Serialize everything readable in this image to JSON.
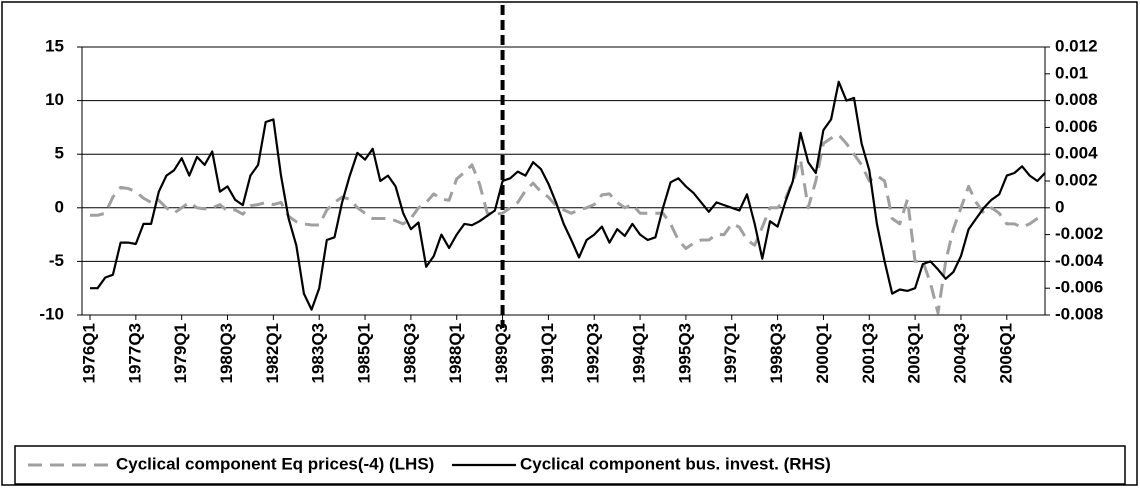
{
  "chart_data": {
    "type": "line",
    "categories": [
      "1976Q1",
      null,
      null,
      null,
      null,
      null,
      "1977Q3",
      null,
      null,
      null,
      null,
      null,
      "1979Q1",
      null,
      null,
      null,
      null,
      null,
      "1980Q3",
      null,
      null,
      null,
      null,
      null,
      "1982Q1",
      null,
      null,
      null,
      null,
      null,
      "1983Q3",
      null,
      null,
      null,
      null,
      null,
      "1985Q1",
      null,
      null,
      null,
      null,
      null,
      "1986Q3",
      null,
      null,
      null,
      null,
      null,
      "1988Q1",
      null,
      null,
      null,
      null,
      null,
      "1989Q3",
      null,
      null,
      null,
      null,
      null,
      "1991Q1",
      null,
      null,
      null,
      null,
      null,
      "1992Q3",
      null,
      null,
      null,
      null,
      null,
      "1994Q1",
      null,
      null,
      null,
      null,
      null,
      "1995Q3",
      null,
      null,
      null,
      null,
      null,
      "1997Q1",
      null,
      null,
      null,
      null,
      null,
      "1998Q3",
      null,
      null,
      null,
      null,
      null,
      "2000Q1",
      null,
      null,
      null,
      null,
      null,
      "2001Q3",
      null,
      null,
      null,
      null,
      null,
      "2003Q1",
      null,
      null,
      null,
      null,
      null,
      "2004Q3",
      null,
      null,
      null,
      null,
      null,
      "2006Q1",
      null,
      null,
      null,
      null,
      null
    ],
    "series": [
      {
        "name": "Cyclical component Eq prices(-4) (LHS)",
        "color": "#a0a0a0",
        "dash": true,
        "axis": "y",
        "values": [
          -0.7,
          -0.7,
          -0.5,
          1,
          1.9,
          1.8,
          1.5,
          0.9,
          0.5,
          0.7,
          0,
          -0.5,
          0,
          0.5,
          0,
          -0.1,
          0,
          0.3,
          -0.3,
          -0.2,
          -0.6,
          0.2,
          0.3,
          0.5,
          0.3,
          0.5,
          -0.8,
          -1.3,
          -1.5,
          -1.6,
          -1.6,
          -0.2,
          0.5,
          1,
          0.8,
          0,
          -0.5,
          -1,
          -1,
          -1,
          -1.2,
          -1.5,
          -1,
          0,
          0.5,
          1.3,
          0.8,
          0.7,
          2.7,
          3.3,
          4,
          2.2,
          -0.5,
          -0.6,
          -0.5,
          0,
          0.5,
          1.6,
          2.3,
          1.5,
          1,
          0.2,
          -0.2,
          -0.5,
          -0.2,
          0,
          0.3,
          1.2,
          1.3,
          0.5,
          0,
          0.3,
          -0.5,
          -0.5,
          -0.5,
          -0.5,
          -1.5,
          -3,
          -3.8,
          -3.3,
          -3,
          -3,
          -2.5,
          -2.5,
          -1.5,
          -1.8,
          -3,
          -3.5,
          -1.8,
          0,
          0,
          0.8,
          2.5,
          4.5,
          0,
          2.5,
          6,
          6.5,
          6.8,
          6,
          5,
          4,
          2.5,
          3,
          2.5,
          -1,
          -1.5,
          0.8,
          -5,
          -5,
          -7,
          -9.8,
          -5,
          -2,
          0,
          2,
          0.5,
          -0.5,
          0,
          -0.5,
          -1.5,
          -1.5,
          -1.8,
          -1.5,
          -1,
          -0.7
        ]
      },
      {
        "name": "Cyclical component bus. invest. (RHS)",
        "color": "#000000",
        "dash": false,
        "axis": "y2",
        "values": [
          -0.006,
          -0.006,
          -0.0052,
          -0.005,
          -0.0026,
          -0.0026,
          -0.0027,
          -0.0012,
          -0.0012,
          0.0012,
          0.0024,
          0.0028,
          0.0037,
          0.0024,
          0.0038,
          0.0032,
          0.0042,
          0.0012,
          0.0016,
          0.0006,
          0.0002,
          0.0024,
          0.0032,
          0.0064,
          0.0066,
          0.0024,
          -0.0008,
          -0.0028,
          -0.0064,
          -0.0076,
          -0.006,
          -0.0024,
          -0.0022,
          0.0004,
          0.0024,
          0.0041,
          0.0036,
          0.0044,
          0.002,
          0.0024,
          0.0016,
          -0.0004,
          -0.0016,
          -0.0011,
          -0.0044,
          -0.0036,
          -0.002,
          -0.003,
          -0.002,
          -0.0012,
          -0.0013,
          -0.001,
          -0.0006,
          -0.0002,
          0.002,
          0.0022,
          0.0027,
          0.0024,
          0.0034,
          0.0029,
          0.0018,
          0.0004,
          -0.0012,
          -0.0024,
          -0.0037,
          -0.0024,
          -0.002,
          -0.0014,
          -0.0026,
          -0.0016,
          -0.0021,
          -0.0012,
          -0.002,
          -0.0024,
          -0.0022,
          0,
          0.0019,
          0.0022,
          0.0016,
          0.0011,
          0.0004,
          -0.0003,
          0.0004,
          0.0002,
          0,
          -0.0002,
          0.001,
          -0.0012,
          -0.0038,
          -0.001,
          -0.0014,
          0.0004,
          0.002,
          0.0056,
          0.0034,
          0.0026,
          0.0058,
          0.0066,
          0.0094,
          0.008,
          0.0082,
          0.0048,
          0.0028,
          -0.0012,
          -0.004,
          -0.0064,
          -0.0061,
          -0.0062,
          -0.006,
          -0.0042,
          -0.004,
          -0.0046,
          -0.0053,
          -0.0048,
          -0.0036,
          -0.0016,
          -0.0008,
          0,
          0.0006,
          0.001,
          0.0024,
          0.0026,
          0.0031,
          0.0024,
          0.002,
          0.0026
        ]
      }
    ],
    "ylim": [
      -10,
      15
    ],
    "yticks": [
      -10,
      -5,
      0,
      5,
      10,
      15
    ],
    "y2lim": [
      -0.008,
      0.012
    ],
    "y2ticks": [
      -0.008,
      -0.006,
      -0.004,
      -0.002,
      0,
      0.002,
      0.004,
      0.006,
      0.008,
      0.01,
      0.012
    ],
    "grid": true,
    "legend": "bottom",
    "annotation_line": {
      "x": "1989Q3"
    }
  }
}
